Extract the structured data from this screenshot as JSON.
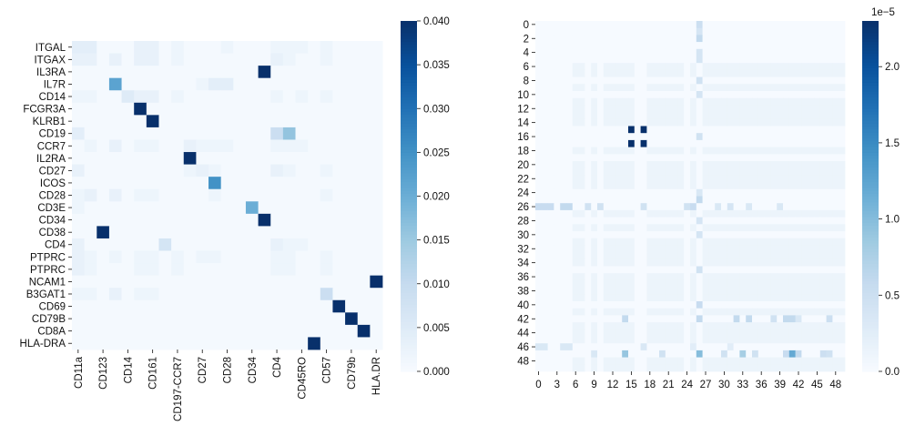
{
  "chart_data": [
    {
      "type": "heatmap",
      "title": "",
      "row_labels": [
        "ITGAL",
        "ITGAX",
        "IL3RA",
        "IL7R",
        "CD14",
        "FCGR3A",
        "KLRB1",
        "CD19",
        "CCR7",
        "IL2RA",
        "CD27",
        "ICOS",
        "CD28",
        "CD3E",
        "CD34",
        "CD38",
        "CD4",
        "PTPRC",
        "PTPRC",
        "NCAM1",
        "B3GAT1",
        "CD69",
        "CD79B",
        "CD8A",
        "HLA-DRA"
      ],
      "col_labels": [
        "CD11a",
        "CD123",
        "CD14",
        "CD161",
        "CD197-CCR7",
        "CD27",
        "CD28",
        "CD34",
        "CD4",
        "CD45RO",
        "CD57",
        "CD79b",
        "HLA.DR"
      ],
      "n_cols": 25,
      "colormap": "Blues",
      "vmin": 0.0,
      "vmax": 0.04,
      "colorbar_ticks": [
        "0.000",
        "0.005",
        "0.010",
        "0.015",
        "0.020",
        "0.025",
        "0.030",
        "0.035",
        "0.040"
      ],
      "colorbar_tick_values": [
        0,
        0.005,
        0.01,
        0.015,
        0.02,
        0.025,
        0.03,
        0.035,
        0.04
      ],
      "cells": [
        [
          0,
          0,
          0.004
        ],
        [
          0,
          1,
          0.004
        ],
        [
          0,
          5,
          0.003
        ],
        [
          0,
          6,
          0.003
        ],
        [
          0,
          8,
          0.002
        ],
        [
          0,
          12,
          0.002
        ],
        [
          0,
          16,
          0.002
        ],
        [
          0,
          17,
          0.002
        ],
        [
          0,
          18,
          0.002
        ],
        [
          0,
          20,
          0.002
        ],
        [
          1,
          0,
          0.003
        ],
        [
          1,
          1,
          0.003
        ],
        [
          1,
          3,
          0.003
        ],
        [
          1,
          5,
          0.003
        ],
        [
          1,
          6,
          0.003
        ],
        [
          1,
          8,
          0.002
        ],
        [
          1,
          16,
          0.003
        ],
        [
          1,
          17,
          0.002
        ],
        [
          1,
          20,
          0.002
        ],
        [
          2,
          15,
          0.04
        ],
        [
          3,
          3,
          0.022
        ],
        [
          3,
          10,
          0.002
        ],
        [
          3,
          11,
          0.004
        ],
        [
          3,
          12,
          0.004
        ],
        [
          4,
          0,
          0.002
        ],
        [
          4,
          1,
          0.002
        ],
        [
          4,
          4,
          0.005
        ],
        [
          4,
          5,
          0.003
        ],
        [
          4,
          6,
          0.003
        ],
        [
          4,
          8,
          0.002
        ],
        [
          4,
          16,
          0.002
        ],
        [
          4,
          18,
          0.002
        ],
        [
          4,
          20,
          0.002
        ],
        [
          5,
          5,
          0.04
        ],
        [
          6,
          6,
          0.04
        ],
        [
          7,
          0,
          0.004
        ],
        [
          7,
          16,
          0.009
        ],
        [
          7,
          17,
          0.016
        ],
        [
          8,
          1,
          0.002
        ],
        [
          8,
          3,
          0.003
        ],
        [
          8,
          5,
          0.002
        ],
        [
          8,
          6,
          0.002
        ],
        [
          8,
          9,
          0.003
        ],
        [
          8,
          10,
          0.002
        ],
        [
          8,
          11,
          0.002
        ],
        [
          8,
          12,
          0.002
        ],
        [
          8,
          16,
          0.002
        ],
        [
          8,
          17,
          0.002
        ],
        [
          8,
          18,
          0.002
        ],
        [
          9,
          9,
          0.04
        ],
        [
          10,
          0,
          0.003
        ],
        [
          10,
          9,
          0.002
        ],
        [
          10,
          10,
          0.003
        ],
        [
          10,
          11,
          0.002
        ],
        [
          10,
          16,
          0.003
        ],
        [
          10,
          17,
          0.002
        ],
        [
          10,
          20,
          0.002
        ],
        [
          11,
          11,
          0.025
        ],
        [
          12,
          0,
          0.002
        ],
        [
          12,
          1,
          0.003
        ],
        [
          12,
          3,
          0.003
        ],
        [
          12,
          5,
          0.002
        ],
        [
          12,
          6,
          0.002
        ],
        [
          12,
          11,
          0.002
        ],
        [
          12,
          20,
          0.002
        ],
        [
          13,
          0,
          0.002
        ],
        [
          13,
          14,
          0.02
        ],
        [
          14,
          15,
          0.04
        ],
        [
          15,
          2,
          0.04
        ],
        [
          16,
          0,
          0.003
        ],
        [
          16,
          7,
          0.007
        ],
        [
          16,
          16,
          0.003
        ],
        [
          16,
          17,
          0.002
        ],
        [
          16,
          18,
          0.002
        ],
        [
          17,
          0,
          0.003
        ],
        [
          17,
          1,
          0.002
        ],
        [
          17,
          3,
          0.002
        ],
        [
          17,
          5,
          0.002
        ],
        [
          17,
          6,
          0.002
        ],
        [
          17,
          8,
          0.002
        ],
        [
          17,
          10,
          0.002
        ],
        [
          17,
          11,
          0.002
        ],
        [
          17,
          16,
          0.002
        ],
        [
          17,
          17,
          0.002
        ],
        [
          17,
          20,
          0.002
        ],
        [
          18,
          0,
          0.003
        ],
        [
          18,
          1,
          0.002
        ],
        [
          18,
          5,
          0.002
        ],
        [
          18,
          6,
          0.002
        ],
        [
          18,
          8,
          0.002
        ],
        [
          18,
          16,
          0.002
        ],
        [
          18,
          17,
          0.002
        ],
        [
          18,
          20,
          0.002
        ],
        [
          19,
          24,
          0.04
        ],
        [
          20,
          0,
          0.002
        ],
        [
          20,
          1,
          0.002
        ],
        [
          20,
          3,
          0.003
        ],
        [
          20,
          5,
          0.002
        ],
        [
          20,
          6,
          0.002
        ],
        [
          20,
          20,
          0.009
        ],
        [
          21,
          21,
          0.04
        ],
        [
          22,
          22,
          0.04
        ],
        [
          23,
          23,
          0.04
        ],
        [
          24,
          19,
          0.04
        ]
      ],
      "base_value": 0.0006
    },
    {
      "type": "heatmap",
      "title": "",
      "n_rows": 50,
      "n_cols": 50,
      "row_tick_labels": [
        "0",
        "2",
        "4",
        "6",
        "8",
        "10",
        "12",
        "14",
        "16",
        "18",
        "20",
        "22",
        "24",
        "26",
        "28",
        "30",
        "32",
        "34",
        "36",
        "38",
        "40",
        "42",
        "44",
        "46",
        "48"
      ],
      "col_tick_labels": [
        "0",
        "3",
        "6",
        "9",
        "12",
        "15",
        "18",
        "21",
        "24",
        "27",
        "30",
        "33",
        "36",
        "39",
        "42",
        "45",
        "48"
      ],
      "colormap": "Blues",
      "vmin": 0.0,
      "vmax": 2.3e-05,
      "colorbar_ticks": [
        "0.0",
        "0.5",
        "1.0",
        "1.5",
        "2.0"
      ],
      "colorbar_tick_values": [
        0,
        0.5,
        1.0,
        1.5,
        2.0
      ],
      "colorbar_multiplier": "1e−5",
      "cells": [
        [
          15,
          15,
          2.3
        ],
        [
          15,
          17,
          2.3
        ],
        [
          17,
          15,
          2.3
        ],
        [
          17,
          17,
          2.3
        ],
        [
          26,
          0,
          0.55
        ],
        [
          26,
          1,
          0.55
        ],
        [
          26,
          2,
          0.55
        ],
        [
          26,
          4,
          0.6
        ],
        [
          26,
          5,
          0.6
        ],
        [
          26,
          8,
          0.45
        ],
        [
          26,
          10,
          0.45
        ],
        [
          26,
          17,
          0.45
        ],
        [
          26,
          24,
          0.45
        ],
        [
          26,
          25,
          0.55
        ],
        [
          26,
          29,
          0.35
        ],
        [
          26,
          31,
          0.4
        ],
        [
          26,
          34,
          0.35
        ],
        [
          26,
          39,
          0.35
        ],
        [
          46,
          0,
          0.35
        ],
        [
          46,
          1,
          0.35
        ],
        [
          46,
          4,
          0.35
        ],
        [
          46,
          5,
          0.35
        ],
        [
          46,
          17,
          0.35
        ],
        [
          46,
          25,
          0.25
        ],
        [
          46,
          31,
          0.25
        ],
        [
          47,
          9,
          0.35
        ],
        [
          47,
          14,
          0.9
        ],
        [
          47,
          20,
          0.45
        ],
        [
          47,
          26,
          1.0
        ],
        [
          47,
          30,
          0.45
        ],
        [
          47,
          33,
          0.8
        ],
        [
          47,
          35,
          0.45
        ],
        [
          47,
          40,
          0.55
        ],
        [
          47,
          41,
          1.2
        ],
        [
          47,
          42,
          0.6
        ],
        [
          47,
          46,
          0.5
        ],
        [
          47,
          47,
          0.45
        ],
        [
          42,
          14,
          0.6
        ],
        [
          42,
          26,
          0.6
        ],
        [
          42,
          32,
          0.6
        ],
        [
          42,
          34,
          0.6
        ],
        [
          42,
          38,
          0.45
        ],
        [
          42,
          40,
          0.6
        ],
        [
          42,
          41,
          0.6
        ],
        [
          42,
          42,
          0.35
        ],
        [
          42,
          47,
          0.5
        ],
        [
          0,
          26,
          0.5
        ],
        [
          1,
          26,
          0.4
        ],
        [
          2,
          26,
          0.6
        ],
        [
          4,
          26,
          0.4
        ],
        [
          5,
          26,
          0.4
        ],
        [
          8,
          26,
          0.45
        ],
        [
          10,
          26,
          0.4
        ],
        [
          16,
          26,
          0.45
        ],
        [
          25,
          26,
          0.6
        ],
        [
          28,
          26,
          0.4
        ],
        [
          30,
          26,
          0.4
        ],
        [
          35,
          26,
          0.45
        ],
        [
          40,
          26,
          0.55
        ],
        [
          24,
          26,
          0.35
        ]
      ],
      "light_rows": [
        6,
        7,
        9,
        11,
        12,
        13,
        14,
        18,
        20,
        21,
        22,
        23,
        27,
        29,
        31,
        32,
        33,
        34,
        36,
        37,
        38,
        39,
        41,
        43,
        44,
        45,
        48,
        49
      ],
      "light_cols": [
        6,
        7,
        9,
        11,
        12,
        13,
        14,
        15,
        18,
        19,
        20,
        21,
        22,
        23,
        25,
        27,
        28,
        29,
        30,
        31,
        32,
        33,
        34,
        35,
        36,
        37,
        38,
        39,
        40,
        41,
        42,
        43,
        44,
        45,
        46,
        47,
        48,
        49
      ],
      "light_value": 0.13,
      "base_value": 0.01
    }
  ]
}
